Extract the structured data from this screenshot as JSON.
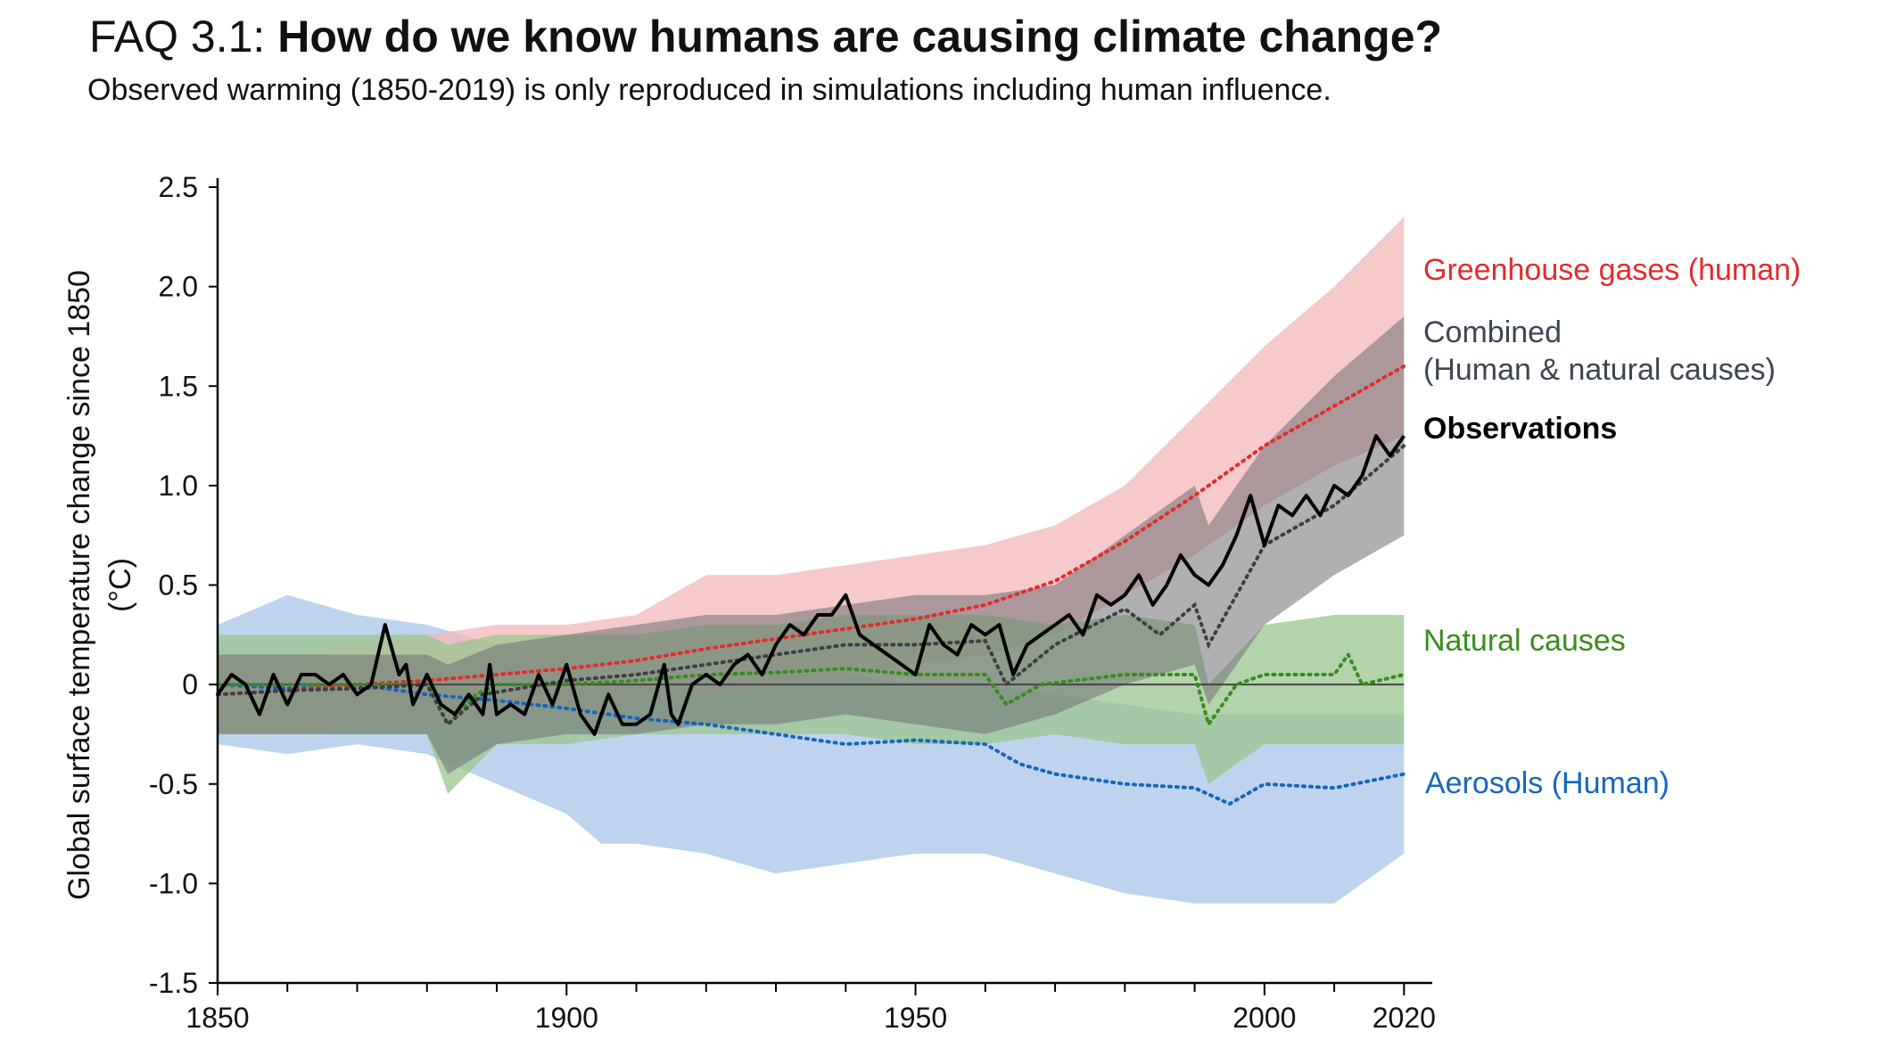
{
  "header": {
    "prefix": "FAQ 3.1: ",
    "title": "How do we know humans are causing climate change?",
    "subtitle": "Observed warming (1850-2019) is only reproduced in simulations including human influence."
  },
  "chart_data": {
    "type": "line",
    "xlim": [
      1850,
      2022
    ],
    "ylim": [
      -1.5,
      2.5
    ],
    "xticks": [
      1850,
      1900,
      1950,
      2000,
      2020
    ],
    "xtick_labels": [
      "1850",
      "1900",
      "1950",
      "2000",
      "2020"
    ],
    "yticks": [
      2.5,
      2.0,
      1.5,
      1.0,
      0.5,
      0,
      -0.5,
      -1.0,
      -1.5
    ],
    "ytick_labels": [
      "2.5",
      "2.0",
      "1.5",
      "1.0",
      "0.5",
      "0",
      "-0.5",
      "-1.0",
      "-1.5"
    ],
    "ylabel_line1": "Global surface temperature change since 1850",
    "ylabel_line2": "(°C)",
    "bands": [
      {
        "name": "Aerosols (Human)",
        "color": "#a8c6e8",
        "x": [
          1850,
          1860,
          1870,
          1880,
          1890,
          1900,
          1905,
          1910,
          1920,
          1930,
          1940,
          1950,
          1960,
          1970,
          1980,
          1990,
          2000,
          2010,
          2020
        ],
        "upper": [
          0.3,
          0.45,
          0.35,
          0.3,
          0.2,
          0.15,
          0.05,
          0.0,
          0.0,
          0.05,
          0.05,
          0.0,
          0.0,
          -0.05,
          -0.1,
          -0.15,
          -0.15,
          -0.15,
          -0.15
        ],
        "lower": [
          -0.3,
          -0.35,
          -0.3,
          -0.35,
          -0.5,
          -0.65,
          -0.8,
          -0.8,
          -0.85,
          -0.95,
          -0.9,
          -0.85,
          -0.85,
          -0.95,
          -1.05,
          -1.1,
          -1.1,
          -1.1,
          -0.85
        ]
      },
      {
        "name": "Greenhouse gases (human)",
        "color": "#f3b7b9",
        "x": [
          1850,
          1860,
          1870,
          1880,
          1890,
          1900,
          1910,
          1920,
          1930,
          1940,
          1950,
          1960,
          1970,
          1980,
          1990,
          2000,
          2010,
          2020
        ],
        "upper": [
          0.15,
          0.15,
          0.2,
          0.25,
          0.3,
          0.3,
          0.35,
          0.55,
          0.55,
          0.6,
          0.65,
          0.7,
          0.8,
          1.0,
          1.35,
          1.7,
          2.0,
          2.35
        ],
        "lower": [
          -0.25,
          -0.25,
          -0.2,
          -0.2,
          -0.15,
          -0.15,
          -0.1,
          -0.05,
          0.0,
          0.05,
          0.1,
          0.15,
          0.25,
          0.45,
          0.65,
          0.9,
          1.1,
          1.25
        ]
      },
      {
        "name": "Natural causes",
        "color": "#9ac58d",
        "x": [
          1850,
          1860,
          1870,
          1880,
          1883,
          1890,
          1900,
          1910,
          1920,
          1930,
          1940,
          1950,
          1960,
          1970,
          1980,
          1990,
          1992,
          2000,
          2010,
          2020
        ],
        "upper": [
          0.25,
          0.25,
          0.25,
          0.25,
          0.2,
          0.25,
          0.25,
          0.25,
          0.3,
          0.3,
          0.35,
          0.35,
          0.35,
          0.3,
          0.35,
          0.3,
          0.0,
          0.3,
          0.35,
          0.35
        ],
        "lower": [
          -0.25,
          -0.25,
          -0.25,
          -0.25,
          -0.55,
          -0.3,
          -0.3,
          -0.25,
          -0.25,
          -0.25,
          -0.25,
          -0.3,
          -0.3,
          -0.25,
          -0.3,
          -0.3,
          -0.5,
          -0.3,
          -0.3,
          -0.3
        ]
      },
      {
        "name": "Combined (Human & natural causes)",
        "color": "#6f6f72",
        "x": [
          1850,
          1860,
          1870,
          1880,
          1883,
          1890,
          1900,
          1910,
          1920,
          1930,
          1940,
          1950,
          1960,
          1970,
          1980,
          1990,
          1992,
          2000,
          2010,
          2020
        ],
        "upper": [
          0.15,
          0.15,
          0.15,
          0.15,
          0.1,
          0.2,
          0.25,
          0.3,
          0.35,
          0.35,
          0.4,
          0.45,
          0.45,
          0.5,
          0.75,
          1.0,
          0.8,
          1.2,
          1.55,
          1.85
        ],
        "lower": [
          -0.25,
          -0.25,
          -0.25,
          -0.25,
          -0.45,
          -0.3,
          -0.25,
          -0.25,
          -0.2,
          -0.2,
          -0.15,
          -0.2,
          -0.25,
          -0.15,
          0.0,
          0.1,
          -0.1,
          0.3,
          0.55,
          0.75
        ]
      }
    ],
    "mean_lines": [
      {
        "name": "Aerosols (Human) mean",
        "color": "#1565c0",
        "x": [
          1850,
          1860,
          1870,
          1880,
          1890,
          1900,
          1910,
          1920,
          1930,
          1940,
          1950,
          1960,
          1965,
          1970,
          1980,
          1990,
          1995,
          2000,
          2010,
          2020
        ],
        "y": [
          0.0,
          -0.02,
          0.0,
          -0.05,
          -0.08,
          -0.12,
          -0.17,
          -0.2,
          -0.25,
          -0.3,
          -0.28,
          -0.3,
          -0.4,
          -0.45,
          -0.5,
          -0.52,
          -0.6,
          -0.5,
          -0.52,
          -0.45
        ]
      },
      {
        "name": "Greenhouse gases mean",
        "color": "#e32b2b",
        "x": [
          1850,
          1860,
          1870,
          1880,
          1890,
          1900,
          1910,
          1920,
          1930,
          1940,
          1950,
          1960,
          1970,
          1980,
          1990,
          2000,
          2010,
          2020
        ],
        "y": [
          -0.05,
          -0.03,
          0.0,
          0.02,
          0.05,
          0.08,
          0.12,
          0.18,
          0.23,
          0.28,
          0.33,
          0.4,
          0.52,
          0.72,
          0.95,
          1.2,
          1.4,
          1.6
        ]
      },
      {
        "name": "Natural causes mean",
        "color": "#3a8a1e",
        "x": [
          1850,
          1860,
          1870,
          1880,
          1883,
          1887,
          1890,
          1900,
          1910,
          1920,
          1930,
          1940,
          1950,
          1960,
          1963,
          1968,
          1980,
          1990,
          1992,
          1996,
          2000,
          2010,
          2012,
          2014,
          2020
        ],
        "y": [
          0.0,
          0.0,
          0.0,
          0.0,
          -0.2,
          -0.05,
          0.0,
          0.0,
          0.02,
          0.05,
          0.06,
          0.08,
          0.05,
          0.05,
          -0.1,
          0.0,
          0.05,
          0.05,
          -0.2,
          0.0,
          0.05,
          0.05,
          0.15,
          0.0,
          0.05
        ]
      },
      {
        "name": "Combined mean",
        "color": "#3d3f44",
        "x": [
          1850,
          1860,
          1870,
          1880,
          1883,
          1888,
          1900,
          1910,
          1920,
          1930,
          1940,
          1950,
          1960,
          1963,
          1970,
          1980,
          1985,
          1990,
          1992,
          2000,
          2010,
          2020
        ],
        "y": [
          -0.05,
          -0.03,
          -0.02,
          0.0,
          -0.2,
          -0.05,
          0.02,
          0.05,
          0.1,
          0.15,
          0.2,
          0.2,
          0.22,
          0.0,
          0.2,
          0.38,
          0.25,
          0.4,
          0.2,
          0.7,
          0.9,
          1.2
        ]
      }
    ],
    "observations": {
      "name": "Observations",
      "color": "#000000",
      "x": [
        1850,
        1852,
        1854,
        1856,
        1858,
        1860,
        1862,
        1864,
        1866,
        1868,
        1870,
        1872,
        1874,
        1876,
        1877,
        1878,
        1880,
        1882,
        1884,
        1886,
        1888,
        1889,
        1890,
        1892,
        1894,
        1896,
        1898,
        1900,
        1902,
        1904,
        1906,
        1908,
        1910,
        1912,
        1914,
        1915,
        1916,
        1918,
        1920,
        1922,
        1924,
        1926,
        1928,
        1930,
        1932,
        1934,
        1936,
        1938,
        1940,
        1942,
        1944,
        1946,
        1948,
        1950,
        1952,
        1954,
        1956,
        1958,
        1960,
        1962,
        1964,
        1966,
        1968,
        1970,
        1972,
        1974,
        1976,
        1978,
        1980,
        1982,
        1984,
        1986,
        1988,
        1990,
        1992,
        1994,
        1996,
        1998,
        2000,
        2002,
        2004,
        2006,
        2008,
        2010,
        2012,
        2014,
        2016,
        2018,
        2020
      ],
      "y": [
        -0.05,
        0.05,
        0.0,
        -0.15,
        0.05,
        -0.1,
        0.05,
        0.05,
        0.0,
        0.05,
        -0.05,
        0.0,
        0.3,
        0.05,
        0.1,
        -0.1,
        0.05,
        -0.1,
        -0.15,
        -0.05,
        -0.15,
        0.1,
        -0.15,
        -0.1,
        -0.15,
        0.05,
        -0.1,
        0.1,
        -0.15,
        -0.25,
        -0.05,
        -0.2,
        -0.2,
        -0.15,
        0.1,
        -0.15,
        -0.2,
        0.0,
        0.05,
        0.0,
        0.1,
        0.15,
        0.05,
        0.2,
        0.3,
        0.25,
        0.35,
        0.35,
        0.45,
        0.25,
        0.2,
        0.15,
        0.1,
        0.05,
        0.3,
        0.2,
        0.15,
        0.3,
        0.25,
        0.3,
        0.05,
        0.2,
        0.25,
        0.3,
        0.35,
        0.25,
        0.45,
        0.4,
        0.45,
        0.55,
        0.4,
        0.5,
        0.65,
        0.55,
        0.5,
        0.6,
        0.75,
        0.95,
        0.7,
        0.9,
        0.85,
        0.95,
        0.85,
        1.0,
        0.95,
        1.05,
        1.25,
        1.15,
        1.25
      ]
    },
    "labels": [
      {
        "text": "Greenhouse gases (human)",
        "color": "#e32b2b",
        "bold": false
      },
      {
        "text": "Combined",
        "color": "#3d4553",
        "bold": false
      },
      {
        "text": "(Human & natural causes)",
        "color": "#3d4553",
        "bold": false
      },
      {
        "text": "Observations",
        "color": "#000000",
        "bold": true
      },
      {
        "text": "Natural causes",
        "color": "#3a8a1e",
        "bold": false
      },
      {
        "text": "Aerosols (Human)",
        "color": "#1565c0",
        "bold": false
      }
    ]
  }
}
